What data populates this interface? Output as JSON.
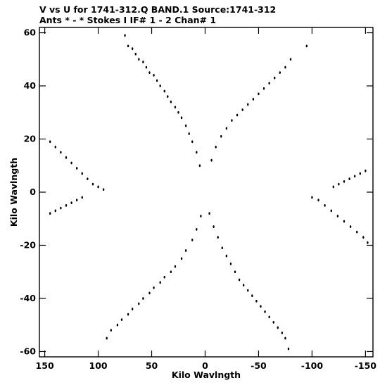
{
  "chart_data": {
    "type": "scatter",
    "title": "V vs U for 1741-312.Q BAND.1   Source:1741-312",
    "subtitle": "Ants * - *    Stokes I  IF# 1 - 2  Chan# 1",
    "xlabel": "Kilo Wavlngth",
    "ylabel": "Kilo Wavlngth",
    "xlim": [
      155,
      -157
    ],
    "ylim": [
      -62,
      62
    ],
    "xticks": [
      150,
      100,
      50,
      0,
      -50,
      -100,
      -150
    ],
    "xtick_labels": [
      "150",
      "100",
      "50",
      "0",
      "-50",
      "-100",
      "-150"
    ],
    "yticks": [
      60,
      40,
      20,
      0,
      -20,
      -40,
      -60
    ],
    "ytick_labels": [
      "60",
      "40",
      "20",
      "0",
      "-20",
      "-40",
      "-60"
    ],
    "grid": false,
    "marker_color": "#000000",
    "points": [
      [
        75,
        59
      ],
      [
        72,
        55
      ],
      [
        68,
        54
      ],
      [
        65,
        52
      ],
      [
        62,
        50
      ],
      [
        58,
        49
      ],
      [
        55,
        47
      ],
      [
        52,
        45
      ],
      [
        48,
        44
      ],
      [
        45,
        42
      ],
      [
        42,
        40
      ],
      [
        38,
        38
      ],
      [
        35,
        36
      ],
      [
        32,
        34
      ],
      [
        28,
        32
      ],
      [
        25,
        30
      ],
      [
        22,
        28
      ],
      [
        18,
        25
      ],
      [
        15,
        22
      ],
      [
        12,
        19
      ],
      [
        8,
        15
      ],
      [
        5,
        10
      ],
      [
        -80,
        50
      ],
      [
        -95,
        55
      ],
      [
        -75,
        47
      ],
      [
        -70,
        45
      ],
      [
        -65,
        43
      ],
      [
        -60,
        41
      ],
      [
        -55,
        39
      ],
      [
        -50,
        37
      ],
      [
        -45,
        35
      ],
      [
        -40,
        33
      ],
      [
        -35,
        31
      ],
      [
        -30,
        29
      ],
      [
        -25,
        27
      ],
      [
        -20,
        24
      ],
      [
        -15,
        21
      ],
      [
        -10,
        17
      ],
      [
        -6,
        12
      ],
      [
        92,
        -55
      ],
      [
        88,
        -52
      ],
      [
        82,
        -50
      ],
      [
        78,
        -48
      ],
      [
        72,
        -46
      ],
      [
        68,
        -44
      ],
      [
        62,
        -42
      ],
      [
        58,
        -40
      ],
      [
        52,
        -38
      ],
      [
        48,
        -36
      ],
      [
        42,
        -34
      ],
      [
        38,
        -32
      ],
      [
        32,
        -30
      ],
      [
        28,
        -28
      ],
      [
        22,
        -25
      ],
      [
        18,
        -22
      ],
      [
        12,
        -18
      ],
      [
        8,
        -14
      ],
      [
        4,
        -9
      ],
      [
        -78,
        -59
      ],
      [
        -75,
        -55
      ],
      [
        -72,
        -53
      ],
      [
        -68,
        -51
      ],
      [
        -64,
        -49
      ],
      [
        -60,
        -47
      ],
      [
        -56,
        -45
      ],
      [
        -52,
        -43
      ],
      [
        -48,
        -41
      ],
      [
        -44,
        -39
      ],
      [
        -40,
        -37
      ],
      [
        -36,
        -35
      ],
      [
        -32,
        -33
      ],
      [
        -28,
        -30
      ],
      [
        -24,
        -27
      ],
      [
        -20,
        -24
      ],
      [
        -16,
        -21
      ],
      [
        -12,
        -17
      ],
      [
        -8,
        -13
      ],
      [
        -4,
        -8
      ],
      [
        145,
        19
      ],
      [
        140,
        17
      ],
      [
        135,
        15
      ],
      [
        130,
        13
      ],
      [
        125,
        11
      ],
      [
        120,
        9
      ],
      [
        115,
        7
      ],
      [
        110,
        5
      ],
      [
        105,
        3
      ],
      [
        100,
        2
      ],
      [
        95,
        1
      ],
      [
        145,
        -8
      ],
      [
        140,
        -7
      ],
      [
        135,
        -6
      ],
      [
        130,
        -5
      ],
      [
        125,
        -4
      ],
      [
        120,
        -3
      ],
      [
        115,
        -2
      ],
      [
        -150,
        8
      ],
      [
        -145,
        7
      ],
      [
        -140,
        6
      ],
      [
        -135,
        5
      ],
      [
        -130,
        4
      ],
      [
        -125,
        3
      ],
      [
        -120,
        2
      ],
      [
        -152,
        -19
      ],
      [
        -148,
        -17
      ],
      [
        -142,
        -15
      ],
      [
        -136,
        -13
      ],
      [
        -130,
        -11
      ],
      [
        -124,
        -9
      ],
      [
        -118,
        -7
      ],
      [
        -112,
        -5
      ],
      [
        -106,
        -3
      ],
      [
        -100,
        -2
      ]
    ]
  }
}
